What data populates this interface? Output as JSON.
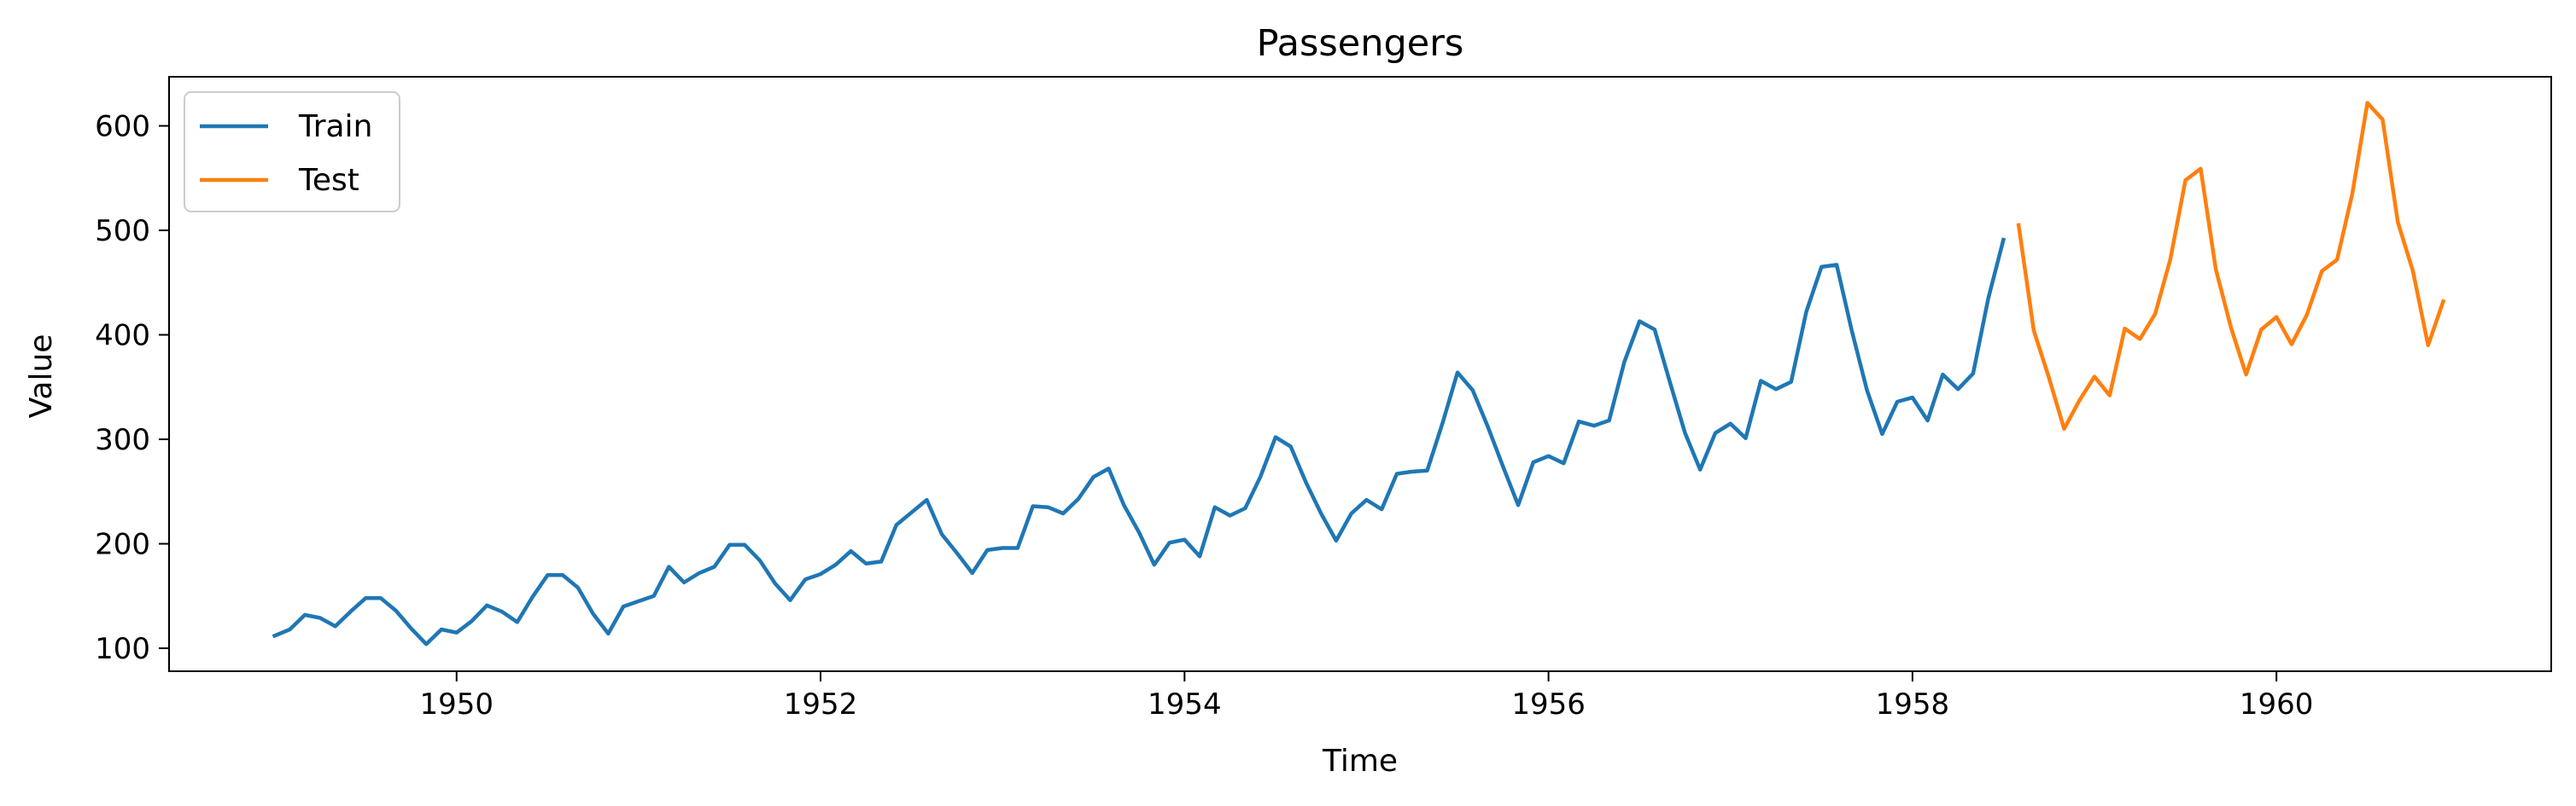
{
  "chart_data": {
    "type": "line",
    "title": "Passengers",
    "xlabel": "Time",
    "ylabel": "Value",
    "xlim": [
      1948.42,
      1961.51
    ],
    "ylim": [
      78,
      647
    ],
    "xticks": [
      "1950",
      "1952",
      "1954",
      "1956",
      "1958",
      "1960"
    ],
    "yticks": [
      "100",
      "200",
      "300",
      "400",
      "500",
      "600"
    ],
    "legend_position": "top-left",
    "series": [
      {
        "name": "Train",
        "color": "#1f77b4",
        "x_start": 1949.0,
        "x_step": 0.0833333,
        "values": [
          112,
          118,
          132,
          129,
          121,
          135,
          148,
          148,
          136,
          119,
          104,
          118,
          115,
          126,
          141,
          135,
          125,
          149,
          170,
          170,
          158,
          133,
          114,
          140,
          145,
          150,
          178,
          163,
          172,
          178,
          199,
          199,
          184,
          162,
          146,
          166,
          171,
          180,
          193,
          181,
          183,
          218,
          230,
          242,
          209,
          191,
          172,
          194,
          196,
          196,
          236,
          235,
          229,
          243,
          264,
          272,
          237,
          211,
          180,
          201,
          204,
          188,
          235,
          227,
          234,
          264,
          302,
          293,
          259,
          229,
          203,
          229,
          242,
          233,
          267,
          269,
          270,
          315,
          364,
          347,
          312,
          274,
          237,
          278,
          284,
          277,
          317,
          313,
          318,
          374,
          413,
          405,
          355,
          306,
          271,
          306,
          315,
          301,
          356,
          348,
          355,
          422,
          465,
          467,
          404,
          347,
          305,
          336,
          340,
          318,
          362,
          348,
          363,
          435,
          491
        ]
      },
      {
        "name": "Test",
        "color": "#ff7f0e",
        "x_start": 1958.5833333,
        "x_step": 0.0833333,
        "values": [
          505,
          404,
          359,
          310,
          337,
          360,
          342,
          406,
          396,
          420,
          472,
          548,
          559,
          463,
          407,
          362,
          405,
          417,
          391,
          419,
          461,
          472,
          535,
          622,
          606,
          508,
          461,
          390,
          432
        ]
      }
    ]
  }
}
